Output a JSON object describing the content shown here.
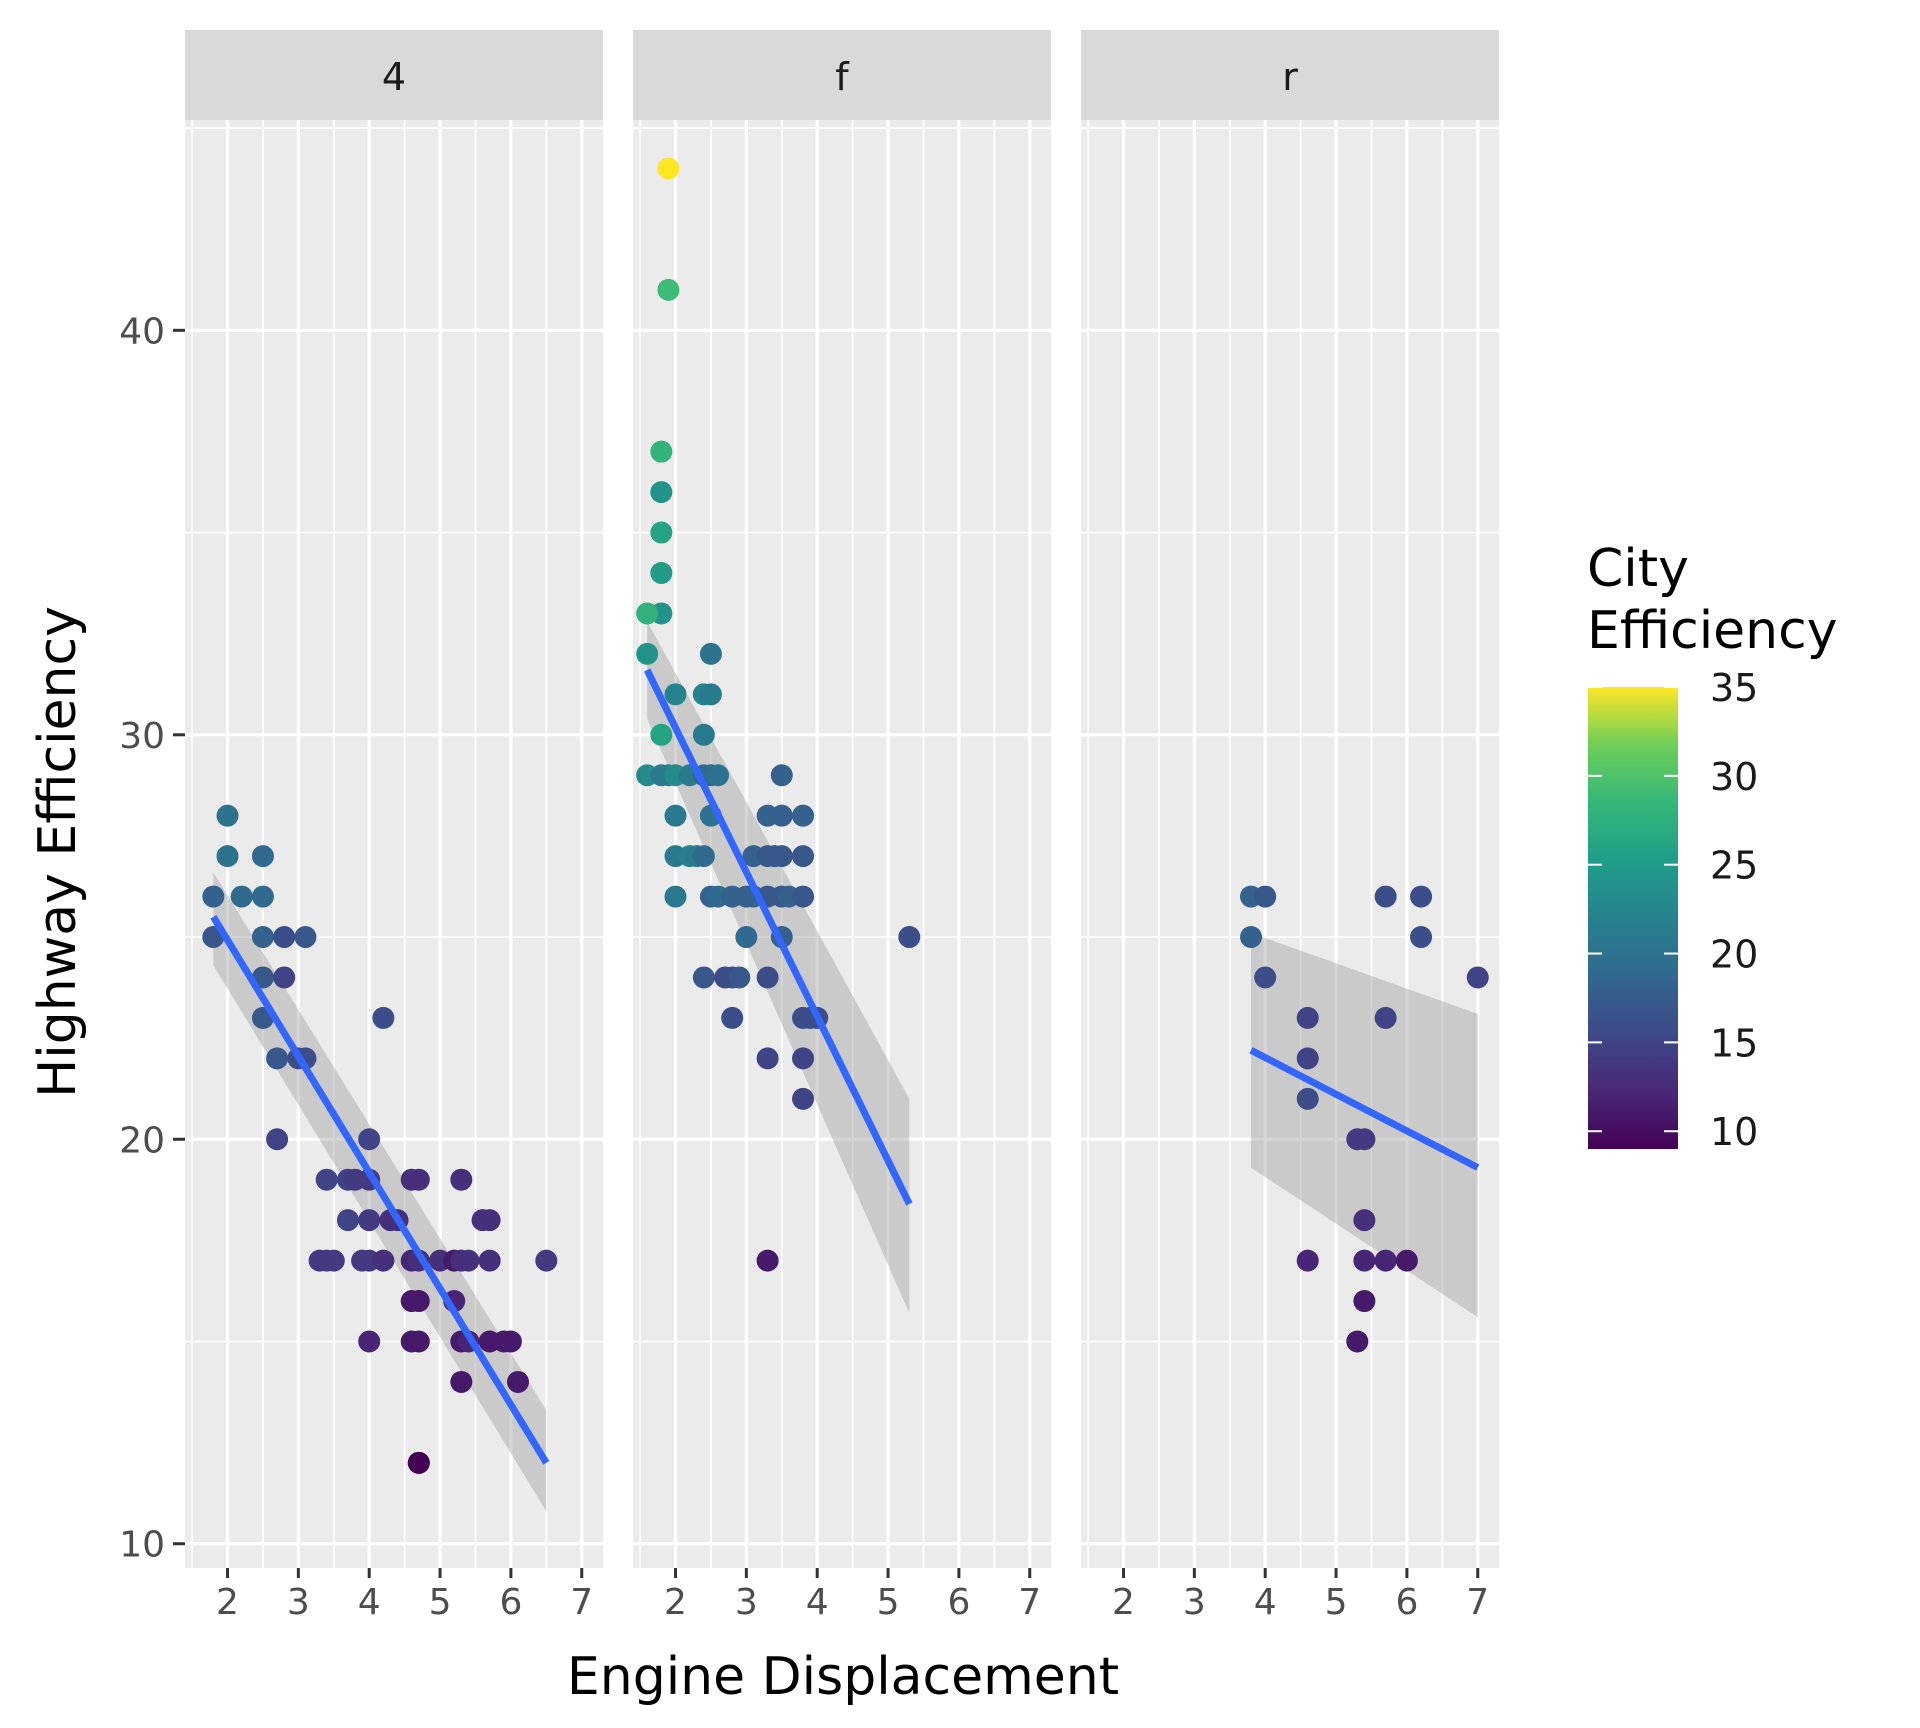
{
  "chart_data": {
    "type": "scatter",
    "facet_variable_values": [
      "4",
      "f",
      "r"
    ],
    "xlabel": "Engine Displacement",
    "ylabel": "Highway Efficiency",
    "xlim": [
      1.4,
      7.3
    ],
    "ylim": [
      9.4,
      45.2
    ],
    "x_ticks": [
      2,
      3,
      4,
      5,
      6,
      7
    ],
    "y_ticks": [
      10,
      20,
      30,
      40
    ],
    "grid": true,
    "legend": {
      "title_lines": [
        "City",
        "Efficiency"
      ],
      "position": "right",
      "range": [
        9,
        35
      ],
      "ticks": [
        10,
        15,
        20,
        25,
        30,
        35
      ],
      "colormap": "viridis"
    },
    "panels": [
      {
        "label": "4",
        "smooth": {
          "x": [
            1.8,
            6.5
          ],
          "y": [
            25.5,
            12.0
          ],
          "band_lo": [
            24.3,
            10.8
          ],
          "band_hi": [
            26.6,
            13.3
          ]
        },
        "points": [
          [
            1.8,
            26,
            18
          ],
          [
            1.8,
            25,
            17
          ],
          [
            2.0,
            28,
            20
          ],
          [
            2.0,
            27,
            20
          ],
          [
            2.2,
            26,
            19
          ],
          [
            2.5,
            27,
            19
          ],
          [
            2.5,
            26,
            19
          ],
          [
            2.5,
            25,
            18
          ],
          [
            2.5,
            24,
            17
          ],
          [
            2.5,
            23,
            17
          ],
          [
            2.7,
            22,
            17
          ],
          [
            2.7,
            20,
            15
          ],
          [
            2.8,
            24,
            15
          ],
          [
            2.8,
            25,
            16
          ],
          [
            3.1,
            25,
            17
          ],
          [
            3.0,
            22,
            16
          ],
          [
            3.1,
            22,
            16
          ],
          [
            3.3,
            17,
            14
          ],
          [
            3.4,
            17,
            14
          ],
          [
            3.4,
            19,
            15
          ],
          [
            3.5,
            17,
            14
          ],
          [
            3.7,
            19,
            15
          ],
          [
            3.7,
            18,
            15
          ],
          [
            3.8,
            19,
            14
          ],
          [
            4.0,
            20,
            15
          ],
          [
            4.0,
            19,
            14
          ],
          [
            4.0,
            18,
            14
          ],
          [
            4.0,
            17,
            14
          ],
          [
            3.9,
            17,
            14
          ],
          [
            4.0,
            15,
            12
          ],
          [
            4.2,
            23,
            16
          ],
          [
            4.2,
            17,
            13
          ],
          [
            4.3,
            18,
            13
          ],
          [
            4.4,
            18,
            13
          ],
          [
            4.6,
            17,
            12
          ],
          [
            4.6,
            19,
            13
          ],
          [
            4.6,
            16,
            11
          ],
          [
            4.6,
            15,
            11
          ],
          [
            4.7,
            19,
            13
          ],
          [
            4.7,
            17,
            13
          ],
          [
            4.7,
            16,
            11
          ],
          [
            4.7,
            15,
            11
          ],
          [
            4.7,
            12,
            9
          ],
          [
            4.7,
            12,
            9
          ],
          [
            5.0,
            17,
            13
          ],
          [
            5.2,
            16,
            12
          ],
          [
            5.2,
            17,
            11
          ],
          [
            5.3,
            19,
            13
          ],
          [
            5.3,
            17,
            13
          ],
          [
            5.3,
            15,
            11
          ],
          [
            5.3,
            14,
            11
          ],
          [
            5.4,
            17,
            13
          ],
          [
            5.4,
            15,
            12
          ],
          [
            5.6,
            18,
            13
          ],
          [
            5.7,
            18,
            13
          ],
          [
            5.7,
            17,
            13
          ],
          [
            5.7,
            15,
            11
          ],
          [
            5.9,
            15,
            11
          ],
          [
            6.0,
            15,
            11
          ],
          [
            6.1,
            14,
            11
          ],
          [
            6.5,
            17,
            14
          ]
        ]
      },
      {
        "label": "f",
        "smooth": {
          "x": [
            1.6,
            5.3
          ],
          "y": [
            31.6,
            18.4
          ],
          "band_lo": [
            30.4,
            15.7
          ],
          "band_hi": [
            32.8,
            21.0
          ]
        },
        "points": [
          [
            1.9,
            44,
            35
          ],
          [
            1.9,
            41,
            29
          ],
          [
            1.8,
            37,
            28
          ],
          [
            1.8,
            36,
            24
          ],
          [
            1.8,
            35,
            26
          ],
          [
            1.8,
            34,
            25
          ],
          [
            1.8,
            33,
            24
          ],
          [
            1.6,
            33,
            28
          ],
          [
            1.6,
            32,
            24
          ],
          [
            1.8,
            30,
            26
          ],
          [
            1.6,
            29,
            23
          ],
          [
            1.8,
            29,
            21
          ],
          [
            1.9,
            29,
            21
          ],
          [
            2.0,
            29,
            23
          ],
          [
            2.0,
            31,
            22
          ],
          [
            2.0,
            28,
            21
          ],
          [
            2.0,
            27,
            21
          ],
          [
            2.0,
            26,
            21
          ],
          [
            2.2,
            29,
            21
          ],
          [
            2.2,
            27,
            22
          ],
          [
            2.3,
            27,
            21
          ],
          [
            2.4,
            31,
            22
          ],
          [
            2.4,
            30,
            21
          ],
          [
            2.5,
            31,
            21
          ],
          [
            2.5,
            32,
            20
          ],
          [
            2.4,
            29,
            19
          ],
          [
            2.5,
            29,
            19
          ],
          [
            2.6,
            29,
            20
          ],
          [
            2.5,
            28,
            20
          ],
          [
            2.4,
            27,
            19
          ],
          [
            2.5,
            26,
            18
          ],
          [
            2.6,
            26,
            19
          ],
          [
            2.4,
            24,
            17
          ],
          [
            2.7,
            24,
            16
          ],
          [
            2.8,
            26,
            18
          ],
          [
            2.8,
            24,
            16
          ],
          [
            2.8,
            23,
            16
          ],
          [
            2.9,
            24,
            17
          ],
          [
            3.0,
            26,
            18
          ],
          [
            3.0,
            25,
            19
          ],
          [
            3.1,
            26,
            18
          ],
          [
            3.1,
            27,
            18
          ],
          [
            3.3,
            27,
            17
          ],
          [
            3.3,
            28,
            18
          ],
          [
            3.3,
            26,
            17
          ],
          [
            3.3,
            24,
            16
          ],
          [
            3.3,
            22,
            15
          ],
          [
            3.3,
            17,
            11
          ],
          [
            3.4,
            27,
            17
          ],
          [
            3.5,
            29,
            18
          ],
          [
            3.5,
            28,
            18
          ],
          [
            3.5,
            27,
            17
          ],
          [
            3.5,
            26,
            17
          ],
          [
            3.6,
            26,
            18
          ],
          [
            3.5,
            25,
            18
          ],
          [
            3.8,
            28,
            18
          ],
          [
            3.8,
            27,
            17
          ],
          [
            3.8,
            26,
            17
          ],
          [
            3.8,
            23,
            16
          ],
          [
            3.8,
            22,
            15
          ],
          [
            3.8,
            21,
            15
          ],
          [
            3.9,
            23,
            16
          ],
          [
            4.0,
            23,
            16
          ],
          [
            5.3,
            25,
            16
          ]
        ]
      },
      {
        "label": "r",
        "smooth": {
          "x": [
            3.8,
            7.0
          ],
          "y": [
            22.2,
            19.3
          ],
          "band_lo": [
            19.3,
            15.6
          ],
          "band_hi": [
            25.1,
            23.1
          ]
        },
        "points": [
          [
            3.8,
            26,
            18
          ],
          [
            4.0,
            26,
            17
          ],
          [
            3.8,
            25,
            18
          ],
          [
            4.0,
            24,
            16
          ],
          [
            4.6,
            23,
            15
          ],
          [
            4.6,
            22,
            15
          ],
          [
            4.6,
            21,
            16
          ],
          [
            4.6,
            17,
            12
          ],
          [
            5.3,
            20,
            14
          ],
          [
            5.4,
            20,
            14
          ],
          [
            5.4,
            18,
            13
          ],
          [
            5.4,
            17,
            12
          ],
          [
            5.3,
            15,
            11
          ],
          [
            5.4,
            16,
            11
          ],
          [
            5.7,
            23,
            15
          ],
          [
            5.7,
            17,
            12
          ],
          [
            6.0,
            17,
            11
          ],
          [
            5.7,
            26,
            16
          ],
          [
            6.2,
            26,
            16
          ],
          [
            6.2,
            25,
            16
          ],
          [
            7.0,
            24,
            15
          ]
        ]
      }
    ]
  }
}
